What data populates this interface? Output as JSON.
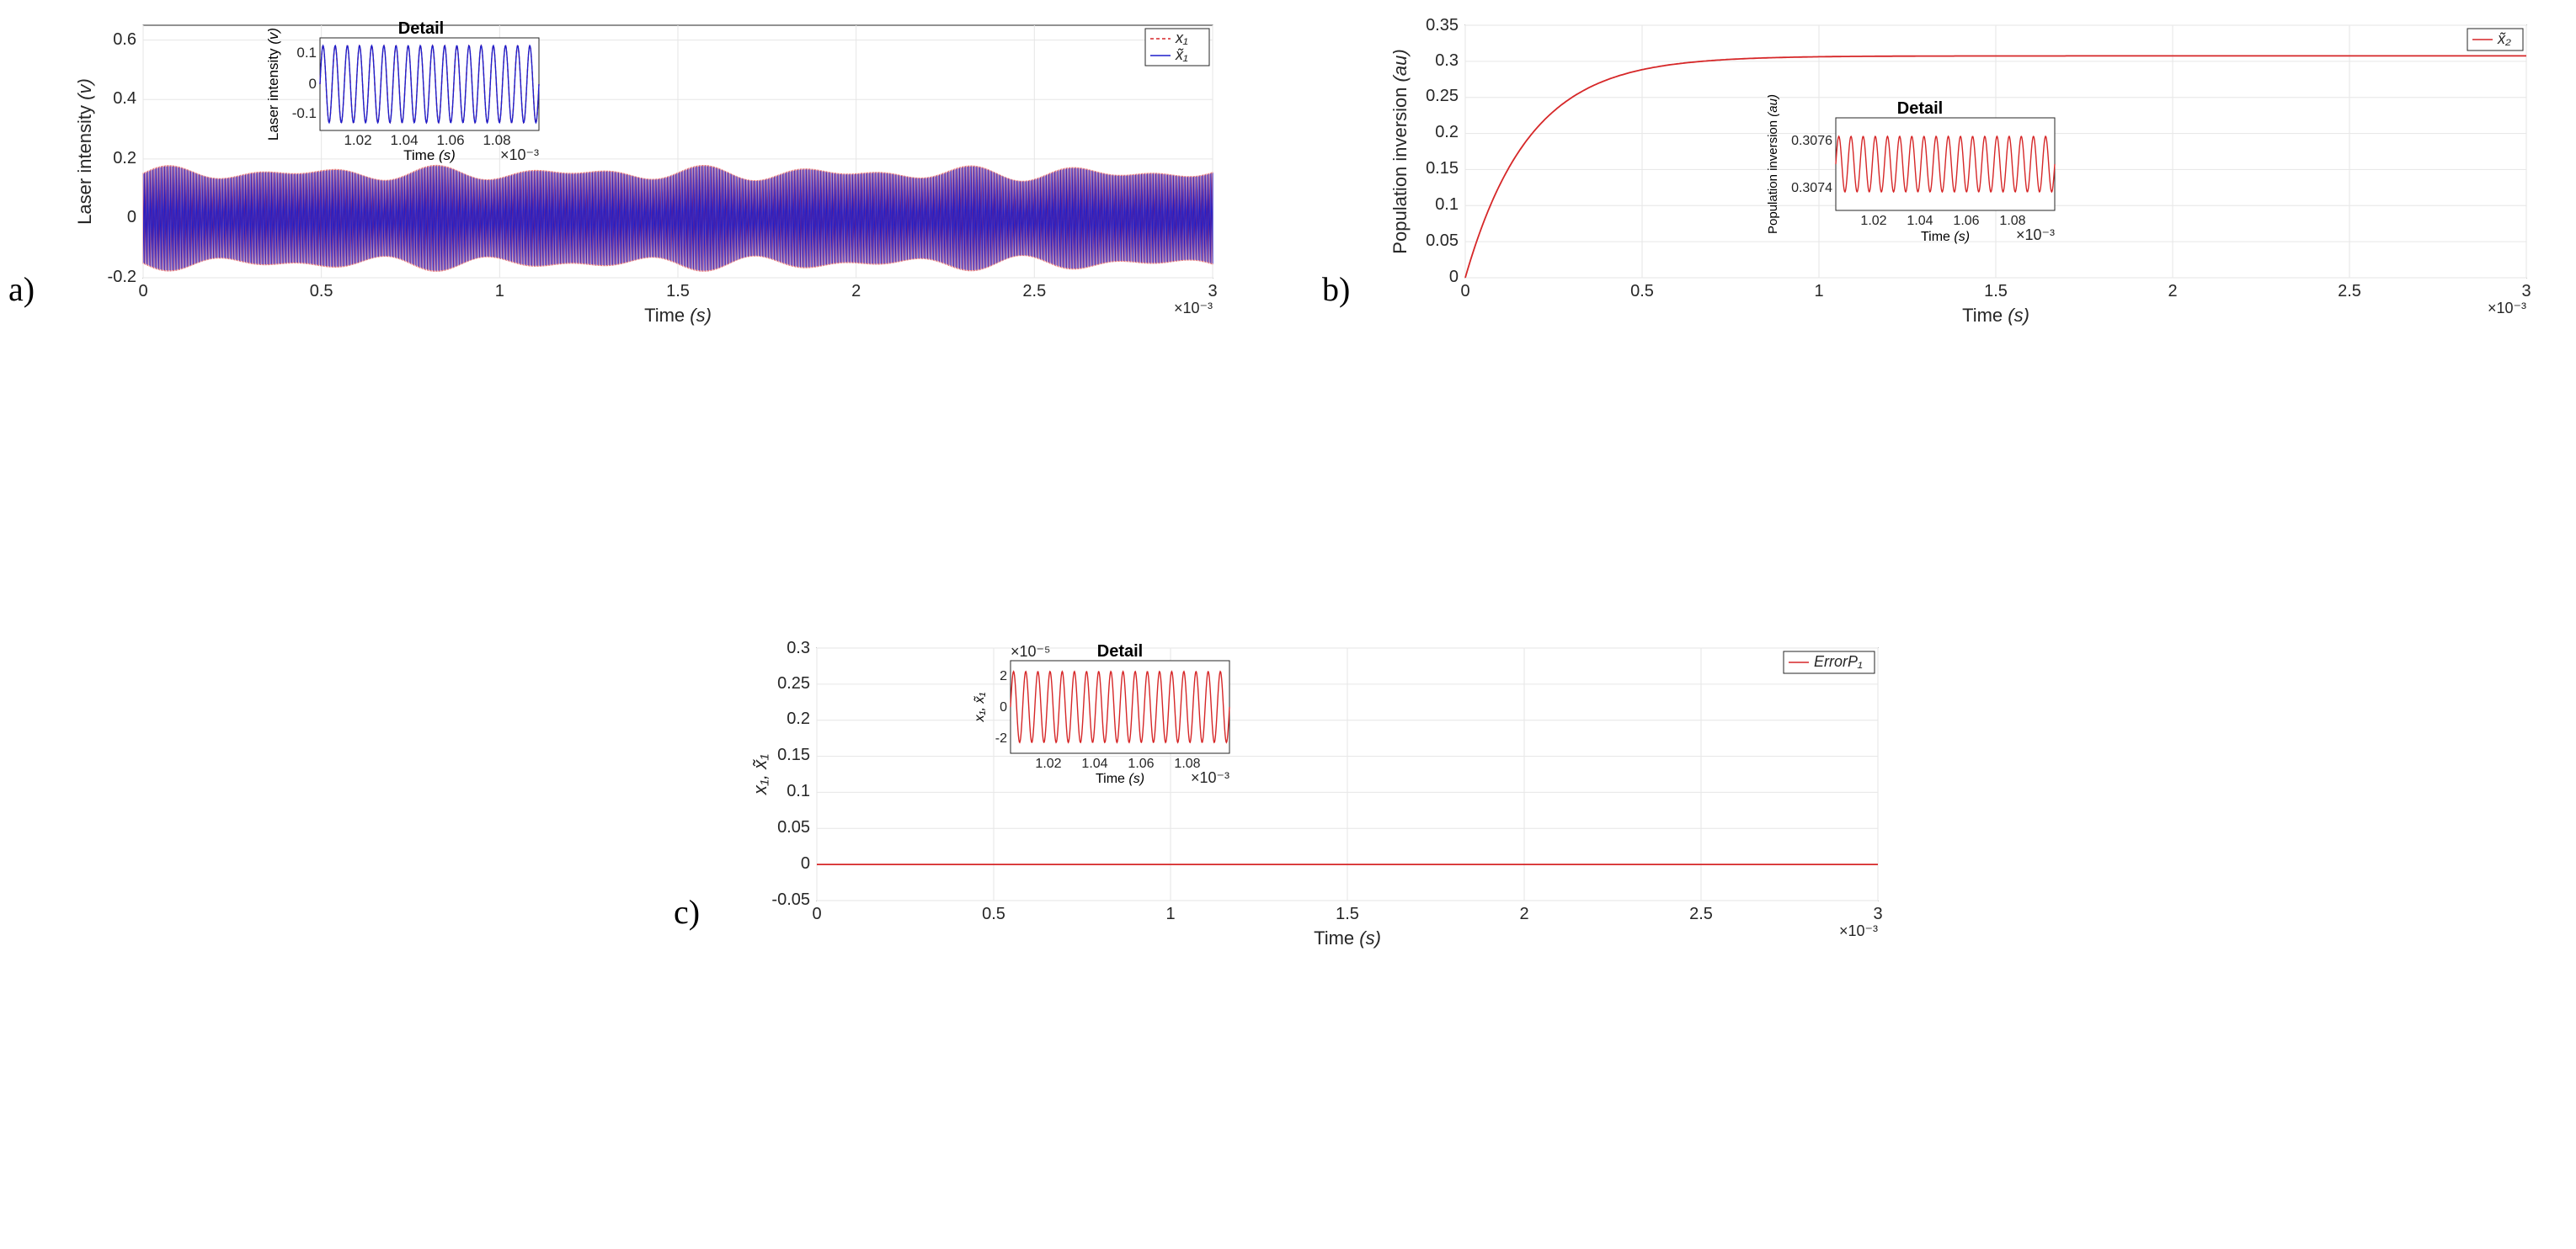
{
  "layout": {
    "figure_width": 3059,
    "figure_height": 1484,
    "background_color": "#ffffff"
  },
  "panel_labels": {
    "a": "a)",
    "b": "b)",
    "c": "c)"
  },
  "colors": {
    "axis": "#262626",
    "grid": "#e6e6e6",
    "text": "#262626",
    "series_red": "#d62728",
    "series_blue": "#1f1fcc",
    "white": "#ffffff"
  },
  "fonts": {
    "axis_label_pt": 22,
    "tick_label_pt": 20,
    "legend_pt": 18,
    "panel_label_pt": 40,
    "inset_title_pt": 20
  },
  "panel_a": {
    "type": "line",
    "title": "",
    "xlabel": "Time (s)",
    "ylabel": "Laser intensity (v)",
    "xlim": [
      0,
      0.003
    ],
    "ylim": [
      -0.2,
      0.65
    ],
    "x_ticks": [
      0,
      0.0005,
      0.001,
      0.0015,
      0.002,
      0.0025,
      0.003
    ],
    "x_tick_labels": [
      "0",
      "0.5",
      "1",
      "1.5",
      "2",
      "2.5",
      "3"
    ],
    "x_sci_note": "×10⁻³",
    "y_ticks": [
      -0.2,
      0,
      0.2,
      0.4,
      0.6
    ],
    "y_tick_labels": [
      "-0.2",
      "0",
      "0.2",
      "0.4",
      "0.6"
    ],
    "grid": true,
    "legend": {
      "position": "top-right",
      "items": [
        {
          "label": "x₁",
          "color": "#d62728",
          "dash": "4,3"
        },
        {
          "label": "x̃₁",
          "color": "#1f1fcc",
          "dash": ""
        }
      ]
    },
    "series_envelope": {
      "low": -0.18,
      "high": 0.18
    },
    "inset": {
      "title": "Detail",
      "xlabel": "Time (s)",
      "ylabel": "Laser intensity (v)",
      "xlim": [
        0.001,
        0.001095
      ],
      "ylim": [
        -0.18,
        0.18
      ],
      "x_ticks": [
        0.00102,
        0.00104,
        0.00106,
        0.00108
      ],
      "x_tick_labels": [
        "1.02",
        "1.04",
        "1.06",
        "1.08"
      ],
      "x_sci_note": "×10⁻³",
      "y_ticks": [
        -0.1,
        0,
        0.1
      ],
      "y_tick_labels": [
        "-0.1",
        "0",
        "0.1"
      ],
      "series": [
        {
          "color": "#d62728",
          "dash": "4,3",
          "amplitude": 0.15,
          "cycles": 18
        },
        {
          "color": "#1f1fcc",
          "dash": "",
          "amplitude": 0.15,
          "cycles": 18
        }
      ]
    }
  },
  "panel_b": {
    "type": "line",
    "title": "",
    "xlabel": "Time (s)",
    "ylabel": "Population inversion (au)",
    "xlim": [
      0,
      0.003
    ],
    "ylim": [
      0,
      0.35
    ],
    "x_ticks": [
      0,
      0.0005,
      0.001,
      0.0015,
      0.002,
      0.0025,
      0.003
    ],
    "x_tick_labels": [
      "0",
      "0.5",
      "1",
      "1.5",
      "2",
      "2.5",
      "3"
    ],
    "x_sci_note": "×10⁻³",
    "y_ticks": [
      0,
      0.05,
      0.1,
      0.15,
      0.2,
      0.25,
      0.3,
      0.35
    ],
    "y_tick_labels": [
      "0",
      "0.05",
      "0.1",
      "0.15",
      "0.2",
      "0.25",
      "0.3",
      "0.35"
    ],
    "grid": true,
    "legend": {
      "position": "top-right",
      "items": [
        {
          "label": "x̃₂",
          "color": "#d62728",
          "dash": ""
        }
      ]
    },
    "curve": {
      "saturation_value": 0.3075,
      "rise_end_x": 0.0009,
      "color": "#d62728",
      "line_width": 1.5
    },
    "inset": {
      "title": "Detail",
      "xlabel": "Time (s)",
      "ylabel": "Population inversion (au)",
      "xlim": [
        0.001,
        0.001095
      ],
      "ylim": [
        0.3073,
        0.3077
      ],
      "x_ticks": [
        0.00102,
        0.00104,
        0.00106,
        0.00108
      ],
      "x_tick_labels": [
        "1.02",
        "1.04",
        "1.06",
        "1.08"
      ],
      "x_sci_note": "×10⁻³",
      "y_ticks": [
        0.3074,
        0.3076
      ],
      "y_tick_labels": [
        "0.3074",
        "0.3076"
      ],
      "series": [
        {
          "color": "#d62728",
          "dash": "",
          "center": 0.3075,
          "amplitude": 0.00012,
          "cycles": 18
        }
      ]
    }
  },
  "panel_c": {
    "type": "line",
    "title": "",
    "xlabel": "Time (s)",
    "ylabel": "x₁, x̃₁",
    "xlim": [
      0,
      0.003
    ],
    "ylim": [
      -0.05,
      0.3
    ],
    "x_ticks": [
      0,
      0.0005,
      0.001,
      0.0015,
      0.002,
      0.0025,
      0.003
    ],
    "x_tick_labels": [
      "0",
      "0.5",
      "1",
      "1.5",
      "2",
      "2.5",
      "3"
    ],
    "x_sci_note": "×10⁻³",
    "y_ticks": [
      -0.05,
      0,
      0.05,
      0.1,
      0.15,
      0.2,
      0.25,
      0.3
    ],
    "y_tick_labels": [
      "-0.05",
      "0",
      "0.05",
      "0.1",
      "0.15",
      "0.2",
      "0.25",
      "0.3"
    ],
    "grid": true,
    "legend": {
      "position": "top-right",
      "items": [
        {
          "label": "ErrorP₁",
          "color": "#d62728",
          "dash": ""
        }
      ]
    },
    "flat_line": {
      "value": 0,
      "color": "#d62728",
      "line_width": 1.5
    },
    "inset": {
      "title": "Detail",
      "xlabel": "Time (s)",
      "ylabel": "x₁, x̃₁",
      "xlim": [
        0.001,
        0.001095
      ],
      "ylim": [
        -3e-05,
        3e-05
      ],
      "x_ticks": [
        0.00102,
        0.00104,
        0.00106,
        0.00108
      ],
      "x_tick_labels": [
        "1.02",
        "1.04",
        "1.06",
        "1.08"
      ],
      "x_sci_note": "×10⁻³",
      "y_ticks": [
        -2e-05,
        0,
        2e-05
      ],
      "y_tick_labels": [
        "-2",
        "0",
        "2"
      ],
      "y_sci_note": "×10⁻⁵",
      "series": [
        {
          "color": "#d62728",
          "dash": "",
          "amplitude": 2.3e-05,
          "cycles": 18
        }
      ]
    }
  }
}
